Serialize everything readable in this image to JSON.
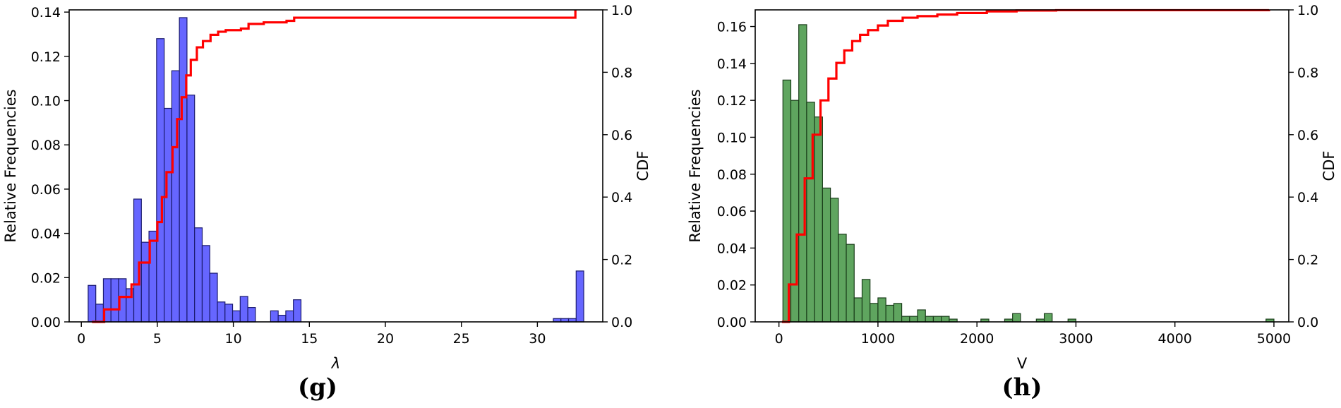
{
  "colors": {
    "cdf_line": "#ff0000",
    "axis": "#000000"
  },
  "chart_data": [
    {
      "type": "bar",
      "panel_label": "(g)",
      "xlabel": "λ",
      "ylabel": "Relative Frequencies",
      "y2label": "CDF",
      "xlim": [
        -0.8,
        34.3
      ],
      "ylim": [
        0,
        0.141
      ],
      "y2lim": [
        0,
        1.0
      ],
      "xticks": [
        0,
        5,
        10,
        15,
        20,
        25,
        30
      ],
      "yticks": [
        0.0,
        0.02,
        0.04,
        0.06,
        0.08,
        0.1,
        0.12,
        0.14
      ],
      "y2ticks": [
        0.0,
        0.2,
        0.4,
        0.6,
        0.8,
        1.0
      ],
      "bar_color": "#6666ff",
      "bar_edge": "#1a1a6e",
      "bin_width": 0.5,
      "bins": [
        [
          0.7,
          0.0165
        ],
        [
          1.2,
          0.008
        ],
        [
          1.7,
          0.0195
        ],
        [
          2.2,
          0.0195
        ],
        [
          2.7,
          0.0195
        ],
        [
          3.2,
          0.015
        ],
        [
          3.7,
          0.0555
        ],
        [
          4.2,
          0.036
        ],
        [
          4.7,
          0.041
        ],
        [
          5.2,
          0.128
        ],
        [
          5.7,
          0.0965
        ],
        [
          6.2,
          0.1135
        ],
        [
          6.7,
          0.1375
        ],
        [
          7.2,
          0.1025
        ],
        [
          7.7,
          0.0425
        ],
        [
          8.2,
          0.0345
        ],
        [
          8.7,
          0.022
        ],
        [
          9.2,
          0.009
        ],
        [
          9.7,
          0.008
        ],
        [
          10.2,
          0.005
        ],
        [
          10.7,
          0.0115
        ],
        [
          11.2,
          0.0065
        ],
        [
          12.7,
          0.005
        ],
        [
          13.2,
          0.003
        ],
        [
          13.7,
          0.005
        ],
        [
          14.2,
          0.01
        ],
        [
          31.3,
          0.0015
        ],
        [
          31.8,
          0.0015
        ],
        [
          32.3,
          0.0015
        ],
        [
          32.8,
          0.023
        ]
      ],
      "cdf": {
        "name": "CDF",
        "x": [
          0.7,
          1.5,
          2.5,
          3.3,
          3.8,
          4.5,
          5.0,
          5.3,
          5.6,
          6.0,
          6.3,
          6.6,
          6.9,
          7.2,
          7.6,
          8.0,
          8.5,
          9.0,
          9.5,
          10.5,
          11.0,
          12.0,
          13.5,
          14.0,
          20.0,
          30.0,
          32.5,
          32.5
        ],
        "y": [
          0.0,
          0.04,
          0.08,
          0.12,
          0.19,
          0.26,
          0.32,
          0.4,
          0.48,
          0.56,
          0.65,
          0.72,
          0.79,
          0.84,
          0.88,
          0.9,
          0.92,
          0.93,
          0.935,
          0.94,
          0.955,
          0.96,
          0.965,
          0.975,
          0.975,
          0.975,
          0.975,
          1.0
        ]
      }
    },
    {
      "type": "bar",
      "panel_label": "(h)",
      "xlabel": "V",
      "ylabel": "Relative Frequencies",
      "y2label": "CDF",
      "xlim": [
        -240,
        5150
      ],
      "ylim": [
        0,
        0.169
      ],
      "y2lim": [
        0,
        1.0
      ],
      "xticks": [
        0,
        1000,
        2000,
        3000,
        4000,
        5000
      ],
      "yticks": [
        0.0,
        0.02,
        0.04,
        0.06,
        0.08,
        0.1,
        0.12,
        0.14,
        0.16
      ],
      "y2ticks": [
        0.0,
        0.2,
        0.4,
        0.6,
        0.8,
        1.0
      ],
      "bar_color": "#5fa55f",
      "bar_edge": "#1a3d1a",
      "bin_width": 80,
      "bins": [
        [
          80,
          0.131
        ],
        [
          160,
          0.12
        ],
        [
          240,
          0.161
        ],
        [
          320,
          0.119
        ],
        [
          400,
          0.111
        ],
        [
          480,
          0.0725
        ],
        [
          560,
          0.067
        ],
        [
          640,
          0.0475
        ],
        [
          720,
          0.042
        ],
        [
          800,
          0.013
        ],
        [
          880,
          0.023
        ],
        [
          960,
          0.01
        ],
        [
          1040,
          0.013
        ],
        [
          1120,
          0.009
        ],
        [
          1200,
          0.01
        ],
        [
          1280,
          0.003
        ],
        [
          1360,
          0.003
        ],
        [
          1440,
          0.0065
        ],
        [
          1520,
          0.003
        ],
        [
          1600,
          0.003
        ],
        [
          1680,
          0.003
        ],
        [
          1760,
          0.0015
        ],
        [
          2080,
          0.0015
        ],
        [
          2320,
          0.0015
        ],
        [
          2400,
          0.0045
        ],
        [
          2640,
          0.0015
        ],
        [
          2720,
          0.0045
        ],
        [
          2960,
          0.0015
        ],
        [
          4960,
          0.0015
        ]
      ],
      "cdf": {
        "name": "CDF",
        "x": [
          30,
          100,
          180,
          260,
          340,
          420,
          500,
          580,
          660,
          740,
          820,
          900,
          1000,
          1100,
          1250,
          1400,
          1600,
          1800,
          2100,
          2400,
          2800,
          3500,
          4950
        ],
        "y": [
          0.0,
          0.12,
          0.28,
          0.46,
          0.6,
          0.71,
          0.78,
          0.83,
          0.87,
          0.9,
          0.92,
          0.935,
          0.95,
          0.965,
          0.975,
          0.98,
          0.985,
          0.99,
          0.995,
          0.998,
          0.999,
          0.999,
          1.0
        ]
      }
    }
  ]
}
